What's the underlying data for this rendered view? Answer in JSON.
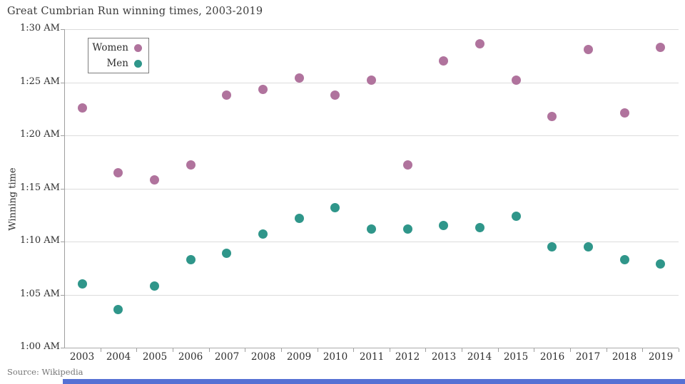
{
  "title": "Great Cumbrian Run winning times, 2003-2019",
  "source": "Source: Wikipedia",
  "colors": {
    "women": "#b0739d",
    "men": "#2f968a",
    "gridline": "#dcdcdc",
    "axis": "#9f9f9f",
    "bottom_bar": "#5671d4"
  },
  "chart_data": {
    "type": "scatter",
    "title": "Great Cumbrian Run winning times, 2003-2019",
    "xlabel": "",
    "ylabel": "Winning time",
    "x": [
      2003,
      2004,
      2005,
      2006,
      2007,
      2008,
      2009,
      2010,
      2011,
      2012,
      2013,
      2014,
      2015,
      2016,
      2017,
      2018,
      2019
    ],
    "y_unit": "minutes past 1:00 AM",
    "ylim": [
      0,
      30
    ],
    "y_ticks": [
      {
        "label": "1:30 AM",
        "minutes": 30
      },
      {
        "label": "1:25 AM",
        "minutes": 25
      },
      {
        "label": "1:20 AM",
        "minutes": 20
      },
      {
        "label": "1:15 AM",
        "minutes": 15
      },
      {
        "label": "1:10 AM",
        "minutes": 10
      },
      {
        "label": "1:05 AM",
        "minutes": 5
      },
      {
        "label": "1:00 AM",
        "minutes": 0
      }
    ],
    "grid": true,
    "legend_position": "top-left",
    "series": [
      {
        "name": "Women",
        "color": "#b0739d",
        "values": [
          22.6,
          16.5,
          15.8,
          17.2,
          23.8,
          24.3,
          25.4,
          23.8,
          25.2,
          17.2,
          27.0,
          28.6,
          25.2,
          21.8,
          28.1,
          22.1,
          28.3
        ]
      },
      {
        "name": "Men",
        "color": "#2f968a",
        "values": [
          6.0,
          3.6,
          5.8,
          8.3,
          8.9,
          10.7,
          12.2,
          13.2,
          11.2,
          11.2,
          11.5,
          11.3,
          12.4,
          9.5,
          9.5,
          8.3,
          7.9
        ]
      }
    ]
  }
}
